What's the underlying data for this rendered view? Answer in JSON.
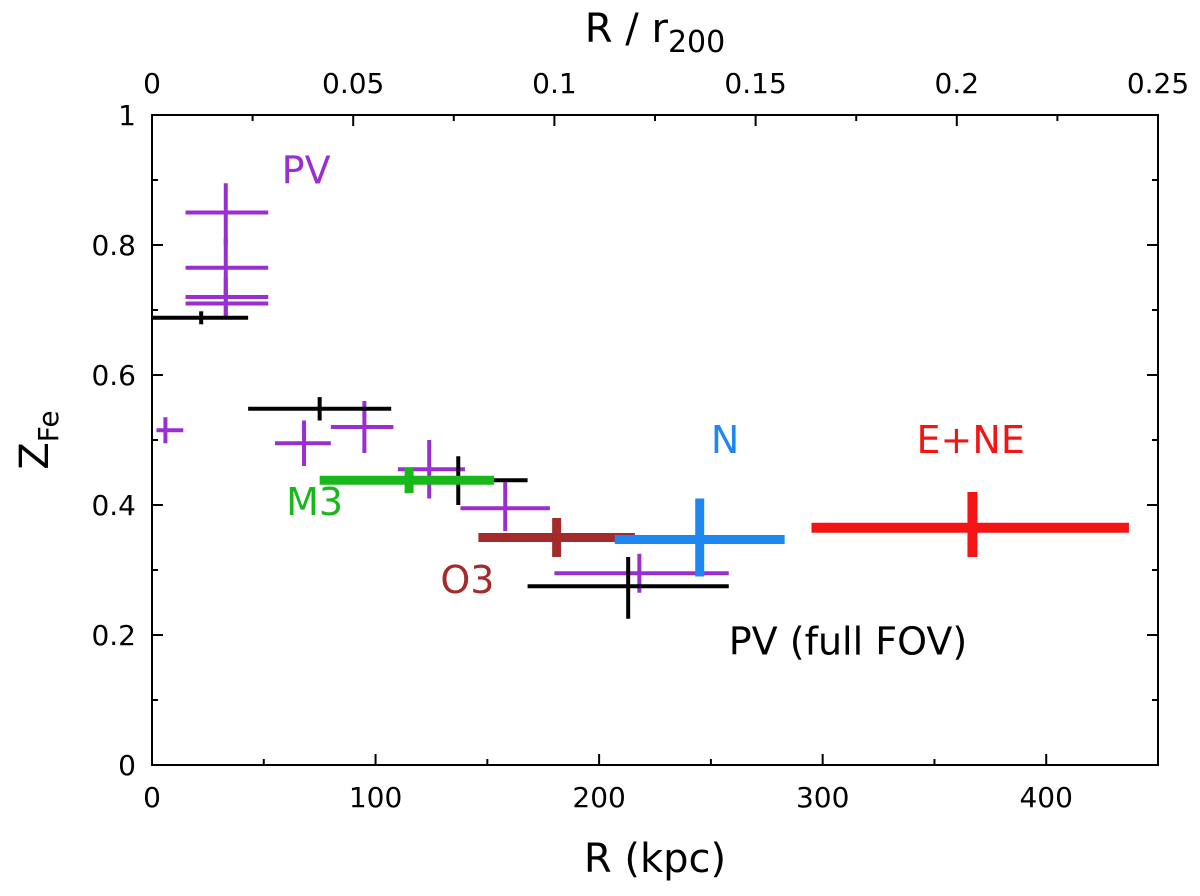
{
  "chart_data": {
    "type": "scatter",
    "xlabel": "R (kpc)",
    "x2label_main": "R / r",
    "x2label_sub": "200",
    "ylabel_main": "Z",
    "ylabel_sub": "Fe",
    "xlim": [
      0,
      450
    ],
    "ylim": [
      0,
      1
    ],
    "x2lim": [
      0,
      0.25
    ],
    "x_ticks": [
      "0",
      "100",
      "200",
      "300",
      "400"
    ],
    "x_tick_values": [
      0,
      100,
      200,
      300,
      400
    ],
    "y_ticks": [
      "0",
      "0.2",
      "0.4",
      "0.6",
      "0.8",
      "1"
    ],
    "y_tick_values": [
      0,
      0.2,
      0.4,
      0.6,
      0.8,
      1
    ],
    "x2_ticks": [
      "0",
      "0.05",
      "0.1",
      "0.15",
      "0.2",
      "0.25"
    ],
    "x2_tick_values": [
      0,
      0.05,
      0.1,
      0.15,
      0.2,
      0.25
    ],
    "grid": false,
    "series": [
      {
        "name": "PV",
        "color": "#9a2fd1",
        "points": [
          {
            "x": 6,
            "xmin": 2,
            "xmax": 14,
            "y": 0.515,
            "ymin": 0.495,
            "ymax": 0.535
          },
          {
            "x": 33,
            "xmin": 15,
            "xmax": 52,
            "y": 0.85,
            "ymin": 0.8,
            "ymax": 0.895
          },
          {
            "x": 33,
            "xmin": 15,
            "xmax": 52,
            "y": 0.765,
            "ymin": 0.72,
            "ymax": 0.81
          },
          {
            "x": 33,
            "xmin": 15,
            "xmax": 52,
            "y": 0.72,
            "ymin": 0.69,
            "ymax": 0.75
          },
          {
            "x": 33,
            "xmin": 15,
            "xmax": 52,
            "y": 0.71,
            "ymin": 0.69,
            "ymax": 0.73
          },
          {
            "x": 68,
            "xmin": 55,
            "xmax": 80,
            "y": 0.495,
            "ymin": 0.46,
            "ymax": 0.53
          },
          {
            "x": 95,
            "xmin": 80,
            "xmax": 108,
            "y": 0.52,
            "ymin": 0.48,
            "ymax": 0.56
          },
          {
            "x": 124,
            "xmin": 110,
            "xmax": 140,
            "y": 0.455,
            "ymin": 0.41,
            "ymax": 0.5
          },
          {
            "x": 158,
            "xmin": 138,
            "xmax": 178,
            "y": 0.395,
            "ymin": 0.36,
            "ymax": 0.435
          },
          {
            "x": 218,
            "xmin": 180,
            "xmax": 258,
            "y": 0.295,
            "ymin": 0.265,
            "ymax": 0.325
          }
        ]
      },
      {
        "name": "PV (full FOV)",
        "color": "#000000",
        "points": [
          {
            "x": 22,
            "xmin": 0,
            "xmax": 43,
            "y": 0.688,
            "ymin": 0.678,
            "ymax": 0.698
          },
          {
            "x": 75,
            "xmin": 43,
            "xmax": 107,
            "y": 0.548,
            "ymin": 0.53,
            "ymax": 0.566
          },
          {
            "x": 137,
            "xmin": 107,
            "xmax": 168,
            "y": 0.438,
            "ymin": 0.4,
            "ymax": 0.475
          },
          {
            "x": 213,
            "xmin": 168,
            "xmax": 258,
            "y": 0.275,
            "ymin": 0.225,
            "ymax": 0.32
          }
        ]
      },
      {
        "name": "M3",
        "color": "#19b81a",
        "points": [
          {
            "x": 115,
            "xmin": 75,
            "xmax": 153,
            "y": 0.438,
            "ymin": 0.418,
            "ymax": 0.458
          }
        ]
      },
      {
        "name": "O3",
        "color": "#a32b2b",
        "points": [
          {
            "x": 181,
            "xmin": 146,
            "xmax": 216,
            "y": 0.35,
            "ymin": 0.32,
            "ymax": 0.38
          }
        ]
      },
      {
        "name": "N",
        "color": "#1e88f0",
        "points": [
          {
            "x": 245,
            "xmin": 207,
            "xmax": 283,
            "y": 0.347,
            "ymin": 0.29,
            "ymax": 0.41
          }
        ]
      },
      {
        "name": "E+NE",
        "color": "#f51414",
        "points": [
          {
            "x": 367,
            "xmin": 295,
            "xmax": 437,
            "y": 0.365,
            "ymin": 0.32,
            "ymax": 0.42
          }
        ]
      }
    ],
    "annotations": [
      {
        "text": "PV",
        "color": "#9a2fd1",
        "x": 58,
        "y": 0.895
      },
      {
        "text": "M3",
        "color": "#19b81a",
        "x": 60,
        "y": 0.385
      },
      {
        "text": "O3",
        "color": "#a32b2b",
        "x": 129,
        "y": 0.265
      },
      {
        "text": "N",
        "color": "#1e88f0",
        "x": 250,
        "y": 0.48
      },
      {
        "text": "E+NE",
        "color": "#f51414",
        "x": 342,
        "y": 0.48
      },
      {
        "text": "PV (full FOV)",
        "color": "#000000",
        "x": 258,
        "y": 0.17
      }
    ]
  }
}
